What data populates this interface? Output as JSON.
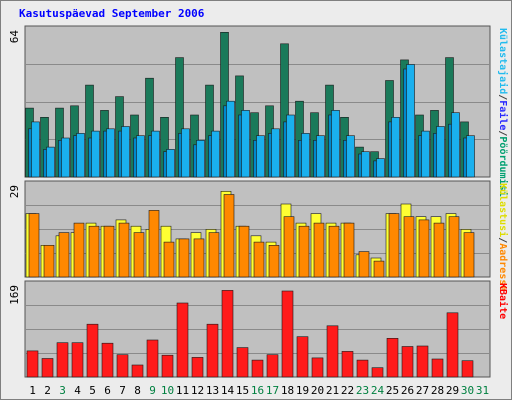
{
  "title": "Kasutuspäevad September 2006",
  "chart_data": {
    "type": "bar",
    "title": "Kasutuspäevad September 2006",
    "categories": [
      "1",
      "2",
      "3",
      "4",
      "5",
      "6",
      "7",
      "8",
      "9",
      "10",
      "11",
      "12",
      "13",
      "14",
      "15",
      "16",
      "17",
      "18",
      "19",
      "20",
      "21",
      "22",
      "23",
      "24",
      "25",
      "26",
      "27",
      "28",
      "29",
      "30",
      "31"
    ],
    "weekend_days": [
      "3",
      "9",
      "10",
      "16",
      "17",
      "23",
      "24",
      "30",
      "31"
    ],
    "grid": true,
    "panels": [
      {
        "name": "visits",
        "ymax_label": "64",
        "ymax": 64,
        "legend": [
          {
            "label": "Pöördumisi",
            "color": "#00a070"
          },
          {
            "label": "/",
            "color": "#444444"
          },
          {
            "label": "Faile",
            "color": "#2a2aff"
          },
          {
            "label": "/",
            "color": "#444444"
          },
          {
            "label": "Külastajaid",
            "color": "#22bbee"
          }
        ],
        "series": [
          {
            "name": "Pöördumisi",
            "color": "#1a7a5a",
            "values": [
              30,
              26,
              30,
              31,
              40,
              29,
              35,
              27,
              43,
              26,
              52,
              27,
              40,
              63,
              44,
              28,
              31,
              58,
              33,
              28,
              40,
              26,
              13,
              11,
              42,
              51,
              27,
              29,
              52,
              24,
              0
            ]
          },
          {
            "name": "Faile",
            "color": "#0088cc",
            "values": [
              21,
              12,
              16,
              18,
              17,
              20,
              20,
              17,
              18,
              11,
              19,
              14,
              18,
              31,
              27,
              16,
              19,
              24,
              16,
              16,
              27,
              16,
              10,
              7,
              24,
              47,
              18,
              19,
              23,
              17,
              0
            ]
          },
          {
            "name": "Külastajaid",
            "color": "#1ab0ee",
            "values": [
              24,
              13,
              17,
              19,
              20,
              21,
              22,
              18,
              20,
              12,
              21,
              16,
              20,
              33,
              29,
              18,
              21,
              27,
              19,
              18,
              29,
              18,
              11,
              8,
              26,
              49,
              20,
              22,
              28,
              18,
              0
            ]
          }
        ]
      },
      {
        "name": "sites",
        "ymax_label": "29",
        "ymax": 29,
        "legend": [
          {
            "label": "Aadresse",
            "color": "#ff8800"
          },
          {
            "label": "/",
            "color": "#444444"
          },
          {
            "label": "Külastusi",
            "color": "#dddd00"
          }
        ],
        "series": [
          {
            "name": "Külastusi",
            "color": "#ffff33",
            "values": [
              20,
              10,
              13,
              14,
              17,
              16,
              18,
              16,
              15,
              16,
              12,
              14,
              15,
              27,
              16,
              13,
              11,
              23,
              17,
              20,
              17,
              17,
              7,
              6,
              20,
              23,
              19,
              19,
              20,
              15,
              0
            ]
          },
          {
            "name": "Aadresse",
            "color": "#ff8800",
            "values": [
              20,
              10,
              14,
              17,
              16,
              16,
              17,
              14,
              21,
              11,
              12,
              12,
              14,
              26,
              16,
              11,
              10,
              19,
              16,
              17,
              16,
              17,
              8,
              5,
              20,
              19,
              18,
              17,
              19,
              14,
              0
            ]
          }
        ]
      },
      {
        "name": "kbytes",
        "ymax_label": "169",
        "ymax": 169,
        "legend": [
          {
            "label": "KBaite",
            "color": "#ff0000"
          }
        ],
        "series": [
          {
            "name": "KBaite",
            "color": "#ff1a1a",
            "values": [
              48,
              34,
              63,
              63,
              97,
              62,
              41,
              22,
              68,
              40,
              136,
              36,
              97,
              159,
              54,
              31,
              41,
              158,
              74,
              35,
              94,
              47,
              31,
              17,
              71,
              56,
              57,
              33,
              118,
              30,
              0
            ]
          }
        ]
      }
    ]
  }
}
